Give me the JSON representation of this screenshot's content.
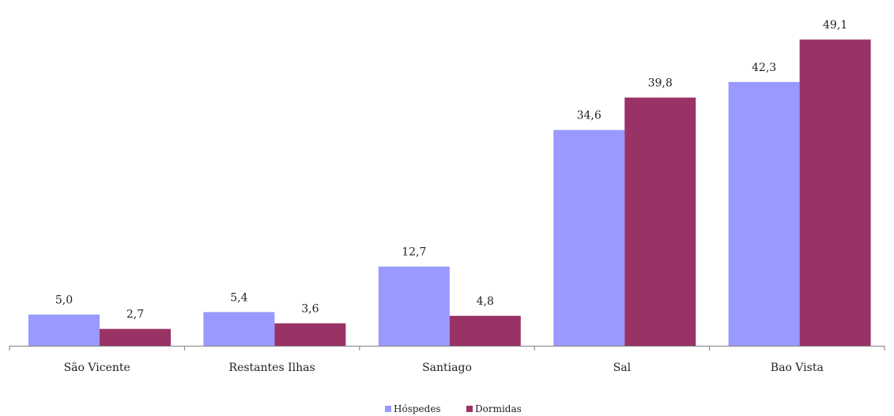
{
  "chart_data": {
    "type": "bar",
    "categories": [
      "São Vicente",
      "Restantes Ilhas",
      "Santiago",
      "Sal",
      "Bao Vista"
    ],
    "series": [
      {
        "name": "Hóspedes",
        "values": [
          5.0,
          5.4,
          12.7,
          34.6,
          42.3
        ],
        "labels": [
          "5,0",
          "5,4",
          "12,7",
          "34,6",
          "42,3"
        ],
        "color": "#9999ff"
      },
      {
        "name": "Dormidas",
        "values": [
          2.7,
          3.6,
          4.8,
          39.8,
          49.1
        ],
        "labels": [
          "2,7",
          "3,6",
          "4,8",
          "39,8",
          "49,1"
        ],
        "color": "#993366"
      }
    ],
    "ylim": [
      0,
      50
    ],
    "grid": false,
    "legend": "bottom"
  }
}
